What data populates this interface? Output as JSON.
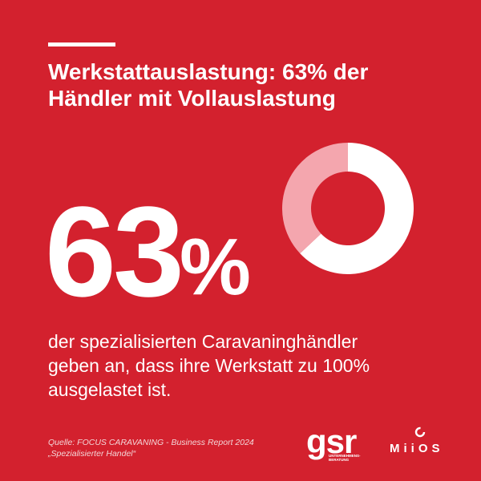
{
  "headline": {
    "line1": "Werkstattauslastung: 63% der",
    "line2": "Händler mit Vollauslastung"
  },
  "big_number": {
    "value": "63",
    "unit": "%"
  },
  "body": {
    "line1": "der spezialisierten Caravaninghändler",
    "line2": "geben an, dass ihre Werkstatt zu 100%",
    "line3": "ausgelastet ist."
  },
  "source": {
    "line1": "Quelle: FOCUS CARAVANING - Business Report 2024",
    "line2": "„Spezialisierter Handel“"
  },
  "logos": {
    "gsr_mark": "gsr",
    "gsr_sub1": "UNTERNEHMENS-",
    "gsr_sub2": "BERATUNG",
    "miios_word": "MiiOS"
  },
  "colors": {
    "background": "#d3212e",
    "primary": "#ffffff",
    "donut_remainder": "#f4a6ae"
  },
  "chart_data": {
    "type": "pie",
    "style": "donut",
    "title": "",
    "slices": [
      {
        "label": "",
        "value": 63,
        "color": "#ffffff"
      },
      {
        "label": "",
        "value": 37,
        "color": "#f4a6ae"
      }
    ]
  }
}
